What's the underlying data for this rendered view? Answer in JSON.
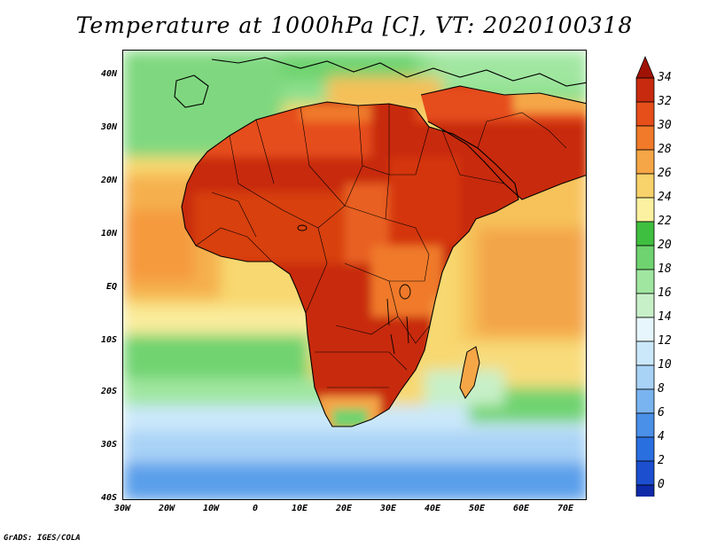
{
  "title": "Temperature at 1000hPa [C], VT: 2020100318",
  "footer": "GrADS: IGES/COLA",
  "map": {
    "projection": "latlon",
    "lon_range": [
      -30,
      75
    ],
    "lat_range": [
      -40,
      45
    ],
    "field": "temperature at 1000hPa",
    "units": "C",
    "valid_time": "2020100318",
    "features": [
      "continent coastlines",
      "country borders",
      "lakes"
    ],
    "x_ticks": [
      "30W",
      "20W",
      "10W",
      "0",
      "10E",
      "20E",
      "30E",
      "40E",
      "50E",
      "60E",
      "70E"
    ],
    "y_ticks": [
      "40S",
      "30S",
      "20S",
      "10S",
      "EQ",
      "10N",
      "20N",
      "30N",
      "40N"
    ]
  },
  "colorbar": {
    "labels": [
      "34",
      "32",
      "30",
      "28",
      "26",
      "24",
      "22",
      "20",
      "18",
      "16",
      "14",
      "12",
      "10",
      "8",
      "6",
      "4",
      "2",
      "0"
    ],
    "colors": [
      "#d8d8ff",
      "#0b1a73",
      "#0f2aa8",
      "#1c4fd0",
      "#2a6fe0",
      "#4a8fe8",
      "#7ab4f0",
      "#a8d2f6",
      "#cbe8fa",
      "#e6f6fc",
      "#c8f0c8",
      "#a0e6a0",
      "#6fd36f",
      "#3fbf3f",
      "#fbf1a0",
      "#f8d26a",
      "#f5a646",
      "#f07a2a",
      "#e64e1a",
      "#c82a0f",
      "#a01205"
    ]
  }
}
